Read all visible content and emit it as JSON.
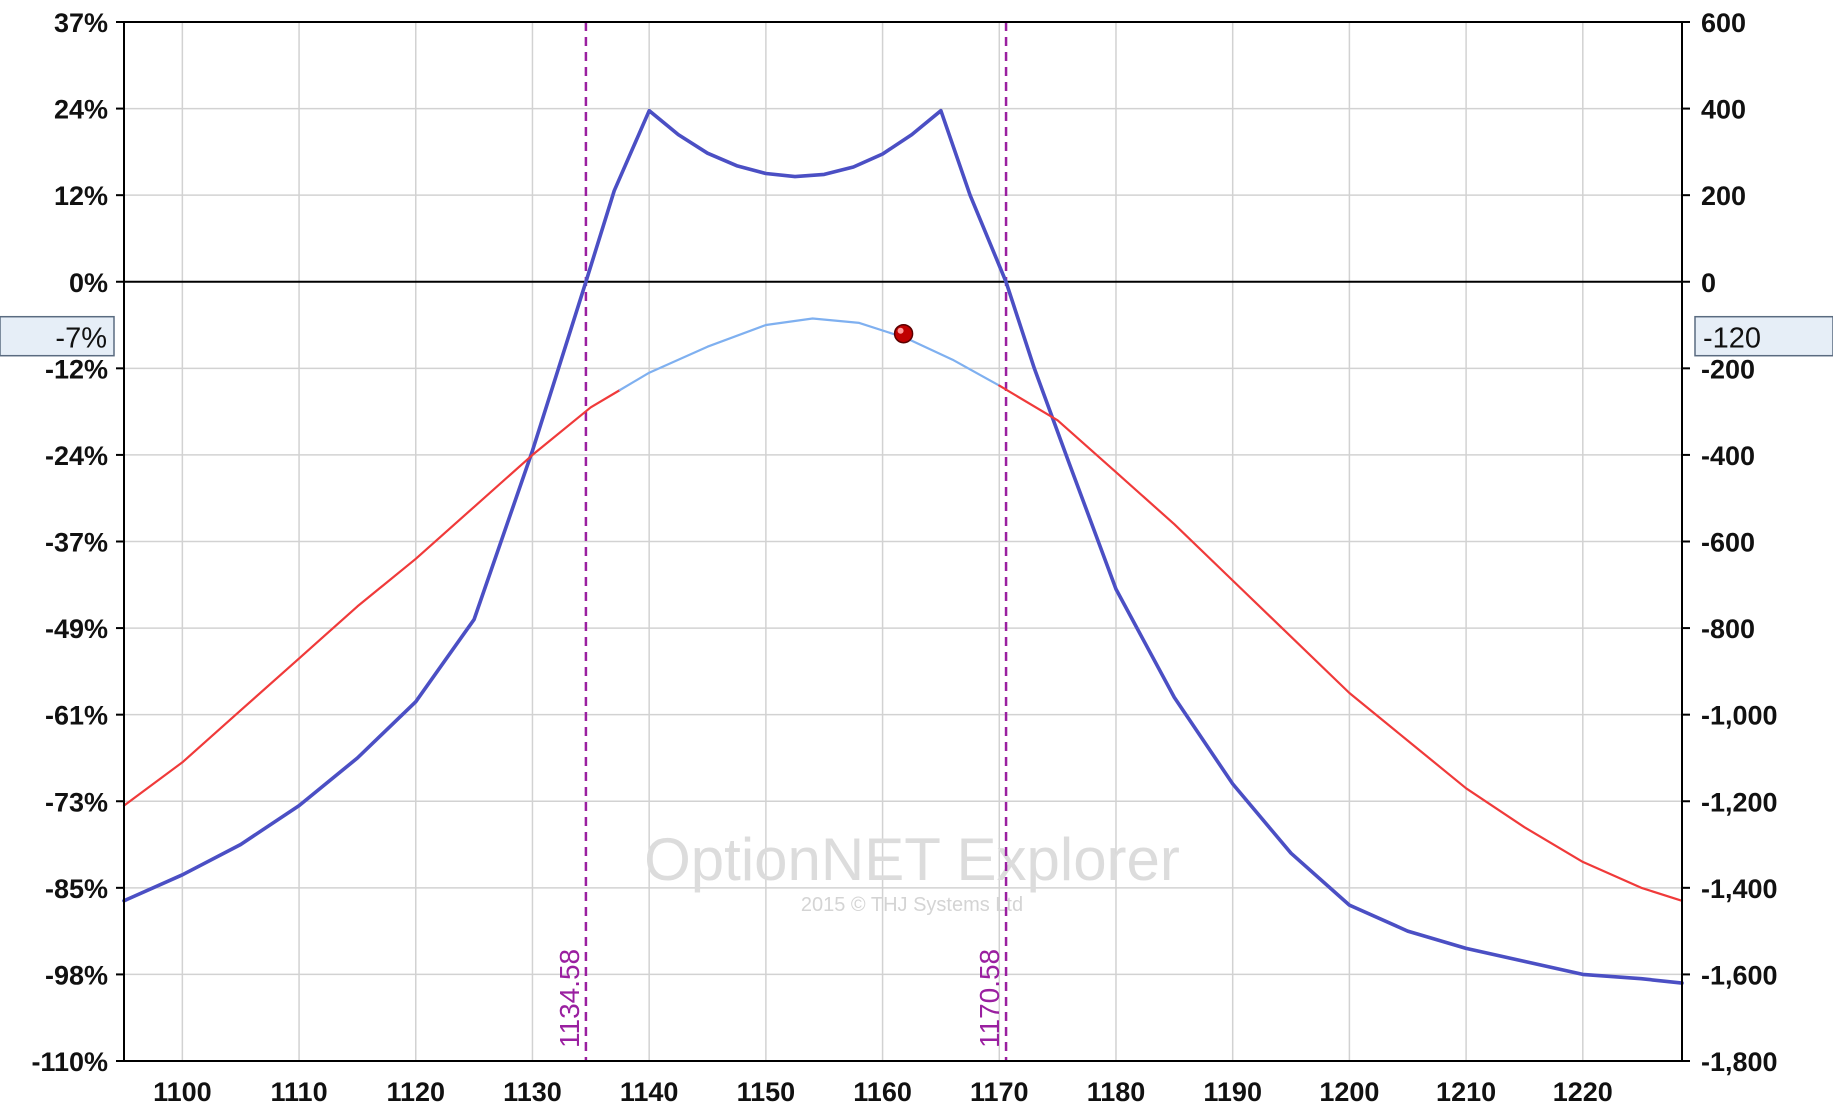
{
  "chart_data": {
    "type": "line",
    "title": "",
    "xlim": [
      1095,
      1228.5
    ],
    "x_ticks": [
      "1100",
      "1110",
      "1120",
      "1130",
      "1140",
      "1150",
      "1160",
      "1170",
      "1180",
      "1190",
      "1200",
      "1210",
      "1220"
    ],
    "x_tick_values": [
      1100,
      1110,
      1120,
      1130,
      1140,
      1150,
      1160,
      1170,
      1180,
      1190,
      1200,
      1210,
      1220
    ],
    "y_left": {
      "ticks": [
        "37%",
        "24%",
        "12%",
        "0%",
        "-12%",
        "-24%",
        "-37%",
        "-49%",
        "-61%",
        "-73%",
        "-85%",
        "-98%",
        "-110%"
      ],
      "ylim": [
        "-110%",
        "37%"
      ]
    },
    "y_right": {
      "ticks": [
        "600",
        "400",
        "200",
        "0",
        "-200",
        "-400",
        "-600",
        "-800",
        "-1,000",
        "-1,200",
        "-1,400",
        "-1,600",
        "-1,800"
      ],
      "tick_values": [
        600,
        400,
        200,
        0,
        -200,
        -400,
        -600,
        -800,
        -1000,
        -1200,
        -1400,
        -1600,
        -1800
      ],
      "ylim": [
        -1800,
        600
      ]
    },
    "grid": true,
    "zero_line": 0,
    "series": [
      {
        "key": "expiration",
        "color": "#4b4fc4",
        "x": [
          1095,
          1100,
          1105,
          1110,
          1115,
          1120,
          1125,
          1130,
          1134.58,
          1137,
          1140,
          1142.5,
          1145,
          1147.5,
          1150,
          1152.5,
          1155,
          1157.5,
          1160,
          1162.5,
          1165,
          1167.5,
          1170.58,
          1173,
          1176,
          1180,
          1185,
          1190,
          1195,
          1200,
          1205,
          1210,
          1215,
          1220,
          1225,
          1228.5
        ],
        "y": [
          -1430,
          -1370,
          -1300,
          -1210,
          -1100,
          -970,
          -780,
          -390,
          0,
          210,
          395,
          340,
          297,
          268,
          250,
          243,
          248,
          265,
          295,
          340,
          395,
          200,
          0,
          -200,
          -420,
          -710,
          -960,
          -1160,
          -1320,
          -1440,
          -1500,
          -1540,
          -1570,
          -1600,
          -1610,
          -1620
        ]
      },
      {
        "key": "today-outer",
        "color": "#f03a3a",
        "x": [
          1095,
          1100,
          1105,
          1110,
          1115,
          1120,
          1125,
          1130,
          1135,
          1137.5
        ],
        "y": [
          -1210,
          -1110,
          -990,
          -870,
          -750,
          -640,
          -520,
          -400,
          -290,
          -250
        ]
      },
      {
        "key": "today-inner",
        "color": "#7fb0f0",
        "x": [
          1137.5,
          1140,
          1145,
          1150,
          1154,
          1158,
          1162,
          1166,
          1170
        ],
        "y": [
          -250,
          -210,
          -150,
          -100,
          -85,
          -95,
          -130,
          -180,
          -240
        ]
      },
      {
        "key": "today-outer-right",
        "color": "#f03a3a",
        "x": [
          1170,
          1175,
          1180,
          1185,
          1190,
          1195,
          1200,
          1205,
          1210,
          1215,
          1220,
          1225,
          1228.5
        ],
        "y": [
          -240,
          -320,
          -440,
          -560,
          -690,
          -820,
          -950,
          -1060,
          -1170,
          -1260,
          -1340,
          -1400,
          -1430
        ]
      }
    ],
    "current_point": {
      "x": 1161.8,
      "y": -120
    },
    "breakevens": [
      {
        "x": 1134.58,
        "label": "1134.58"
      },
      {
        "x": 1170.58,
        "label": "1170.58"
      }
    ],
    "left_badge": "-7%",
    "right_badge": "-120"
  },
  "watermark": {
    "title": "OptionNET Explorer",
    "subtitle": "2015 © THJ Systems Ltd"
  },
  "colors": {
    "grid": "#d2d2d2",
    "axis": "#000000",
    "breakeven": "#9a1fa0",
    "marker": "#c00000",
    "badge_bg": "#e6eef7",
    "badge_border": "#5a6b80"
  }
}
